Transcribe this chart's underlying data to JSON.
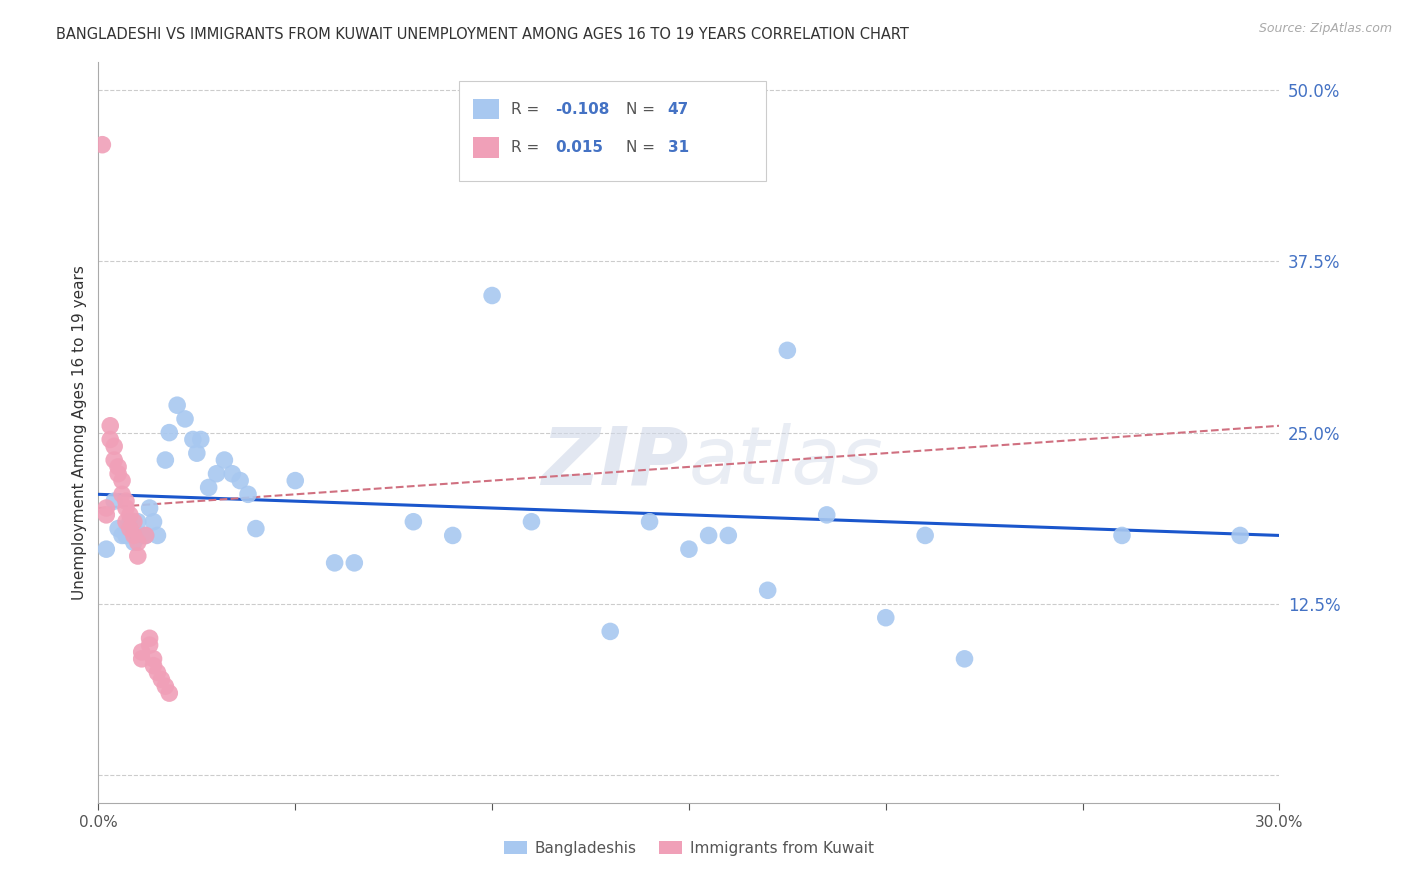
{
  "title": "BANGLADESHI VS IMMIGRANTS FROM KUWAIT UNEMPLOYMENT AMONG AGES 16 TO 19 YEARS CORRELATION CHART",
  "source": "Source: ZipAtlas.com",
  "ylabel": "Unemployment Among Ages 16 to 19 years",
  "watermark": "ZIPatlas",
  "xlim": [
    0.0,
    0.3
  ],
  "ylim": [
    -0.02,
    0.52
  ],
  "blue_color": "#a8c8f0",
  "pink_color": "#f0a0b8",
  "trend_blue": "#1a56cc",
  "trend_pink": "#d07080",
  "legend_R_blue": "-0.108",
  "legend_N_blue": "47",
  "legend_R_pink": "0.015",
  "legend_N_pink": "31",
  "blue_x": [
    0.002,
    0.004,
    0.005,
    0.006,
    0.007,
    0.008,
    0.009,
    0.01,
    0.011,
    0.012,
    0.013,
    0.014,
    0.015,
    0.017,
    0.018,
    0.02,
    0.022,
    0.024,
    0.025,
    0.026,
    0.028,
    0.03,
    0.032,
    0.034,
    0.036,
    0.038,
    0.04,
    0.05,
    0.06,
    0.065,
    0.08,
    0.09,
    0.1,
    0.11,
    0.13,
    0.14,
    0.15,
    0.155,
    0.16,
    0.17,
    0.175,
    0.185,
    0.2,
    0.21,
    0.22,
    0.26,
    0.29
  ],
  "blue_y": [
    0.165,
    0.2,
    0.18,
    0.175,
    0.175,
    0.185,
    0.17,
    0.185,
    0.175,
    0.175,
    0.195,
    0.185,
    0.175,
    0.23,
    0.25,
    0.27,
    0.26,
    0.245,
    0.235,
    0.245,
    0.21,
    0.22,
    0.23,
    0.22,
    0.215,
    0.205,
    0.18,
    0.215,
    0.155,
    0.155,
    0.185,
    0.175,
    0.35,
    0.185,
    0.105,
    0.185,
    0.165,
    0.175,
    0.175,
    0.135,
    0.31,
    0.19,
    0.115,
    0.175,
    0.085,
    0.175,
    0.175
  ],
  "pink_x": [
    0.001,
    0.002,
    0.002,
    0.003,
    0.003,
    0.004,
    0.004,
    0.005,
    0.005,
    0.006,
    0.006,
    0.007,
    0.007,
    0.007,
    0.008,
    0.008,
    0.009,
    0.009,
    0.01,
    0.01,
    0.011,
    0.011,
    0.012,
    0.013,
    0.013,
    0.014,
    0.014,
    0.015,
    0.016,
    0.017,
    0.018
  ],
  "pink_y": [
    0.46,
    0.195,
    0.19,
    0.255,
    0.245,
    0.24,
    0.23,
    0.225,
    0.22,
    0.215,
    0.205,
    0.2,
    0.195,
    0.185,
    0.19,
    0.18,
    0.185,
    0.175,
    0.17,
    0.16,
    0.09,
    0.085,
    0.175,
    0.1,
    0.095,
    0.085,
    0.08,
    0.075,
    0.07,
    0.065,
    0.06
  ],
  "blue_trend_x0": 0.0,
  "blue_trend_y0": 0.205,
  "blue_trend_x1": 0.3,
  "blue_trend_y1": 0.175,
  "pink_trend_x0": 0.0,
  "pink_trend_y0": 0.195,
  "pink_trend_x1": 0.3,
  "pink_trend_y1": 0.255
}
